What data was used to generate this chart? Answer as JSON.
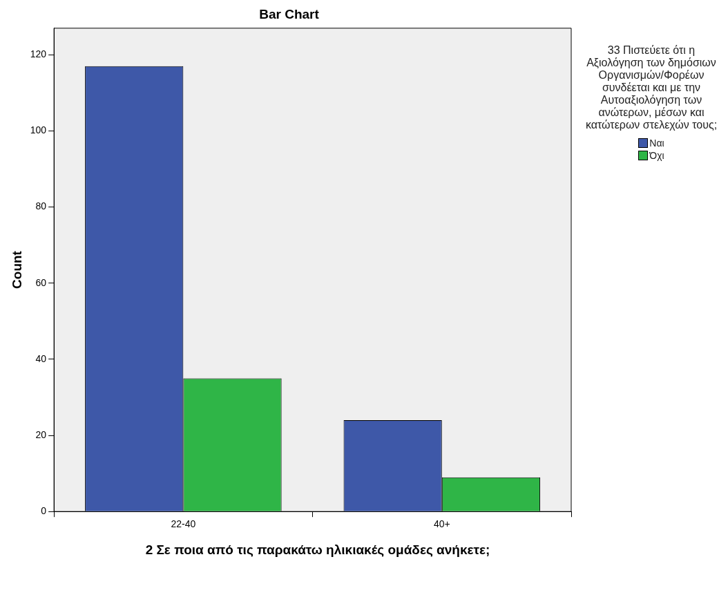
{
  "chart_data": {
    "type": "bar",
    "title": "Bar Chart",
    "xlabel": "2 Σε ποια από τις παρακάτω ηλικιακές ομάδες ανήκετε;",
    "ylabel": "Count",
    "legend_title": "33 Πιστεύετε ότι η Αξιολόγηση των δημόσιων Οργανισμών/Φορέων συνδέεται και με την Αυτοαξιολόγηση των ανώτερων, μέσων και κατώτερων στελεχών τους;",
    "categories": [
      "22-40",
      "40+"
    ],
    "series": [
      {
        "name": "Ναι",
        "color": "#3e58a8",
        "values": [
          117,
          24
        ]
      },
      {
        "name": "Όχι",
        "color": "#2fb547",
        "values": [
          35,
          9
        ]
      }
    ],
    "ylim": [
      0,
      127
    ],
    "yticks": [
      0,
      20,
      40,
      60,
      80,
      100,
      120
    ],
    "grid": false,
    "legend": "right"
  }
}
